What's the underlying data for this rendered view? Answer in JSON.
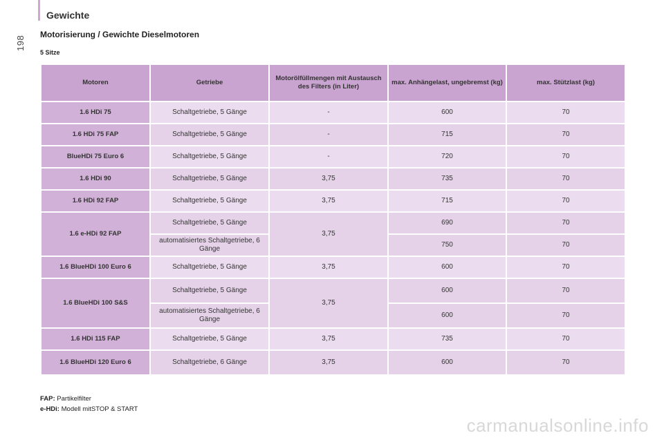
{
  "page_number": "198",
  "chapter_title": "Gewichte",
  "section_title": "Motorisierung / Gewichte Dieselmotoren",
  "seats_label": "5 Sitze",
  "table": {
    "headers": {
      "engine": "Motoren",
      "gearbox": "Getriebe",
      "oil": "Motorölfüllmengen mit Austausch des Filters (in Liter)",
      "trailer": "max. Anhängelast, ungebremst (kg)",
      "nose": "max. Stützlast (kg)"
    },
    "rows": [
      {
        "engine": "1.6 HDi 75",
        "gearbox": "Schaltgetriebe, 5 Gänge",
        "oil": "-",
        "trailer": "600",
        "nose": "70"
      },
      {
        "engine": "1.6 HDi 75 FAP",
        "gearbox": "Schaltgetriebe, 5 Gänge",
        "oil": "-",
        "trailer": "715",
        "nose": "70"
      },
      {
        "engine": "BlueHDi 75 Euro 6",
        "gearbox": "Schaltgetriebe, 5 Gänge",
        "oil": "-",
        "trailer": "720",
        "nose": "70"
      },
      {
        "engine": "1.6 HDi 90",
        "gearbox": "Schaltgetriebe, 5 Gänge",
        "oil": "3,75",
        "trailer": "735",
        "nose": "70"
      },
      {
        "engine": "1.6 HDi 92 FAP",
        "gearbox": "Schaltgetriebe, 5 Gänge",
        "oil": "3,75",
        "trailer": "715",
        "nose": "70"
      },
      {
        "engine": "1.6 e-HDi 92 FAP",
        "gearbox_a": "Schaltgetriebe, 5 Gänge",
        "gearbox_b": "automatisiertes Schaltgetriebe, 6 Gänge",
        "oil": "3,75",
        "trailer_a": "690",
        "nose_a": "70",
        "trailer_b": "750",
        "nose_b": "70"
      },
      {
        "engine": "1.6 BlueHDi 100 Euro 6",
        "gearbox": "Schaltgetriebe, 5 Gänge",
        "oil": "3,75",
        "trailer": "600",
        "nose": "70"
      },
      {
        "engine": "1.6 BlueHDi 100 S&S",
        "gearbox_a": "Schaltgetriebe, 5 Gänge",
        "gearbox_b": "automatisiertes Schaltgetriebe, 6 Gänge",
        "oil": "3,75",
        "trailer_a": "600",
        "nose_a": "70",
        "trailer_b": "600",
        "nose_b": "70"
      },
      {
        "engine": "1.6 HDi 115 FAP",
        "gearbox": "Schaltgetriebe, 5 Gänge",
        "oil": "3,75",
        "trailer": "735",
        "nose": "70"
      },
      {
        "engine": "1.6 BlueHDi 120 Euro 6",
        "gearbox": "Schaltgetriebe, 6 Gänge",
        "oil": "3,75",
        "trailer": "600",
        "nose": "70"
      }
    ]
  },
  "footnotes": [
    {
      "term": "FAP:",
      "text": " Partikelfilter"
    },
    {
      "term": "e-HDi:",
      "text": " Modell mitSTOP & START"
    }
  ],
  "watermark": "carmanualsonline.info",
  "colors": {
    "header": "#c9a4d0",
    "engine_cell": "#d1b1d7",
    "row": "#ecdcef",
    "row_alt": "#e5d2e9",
    "accent_bar": "#cfa7d2"
  }
}
